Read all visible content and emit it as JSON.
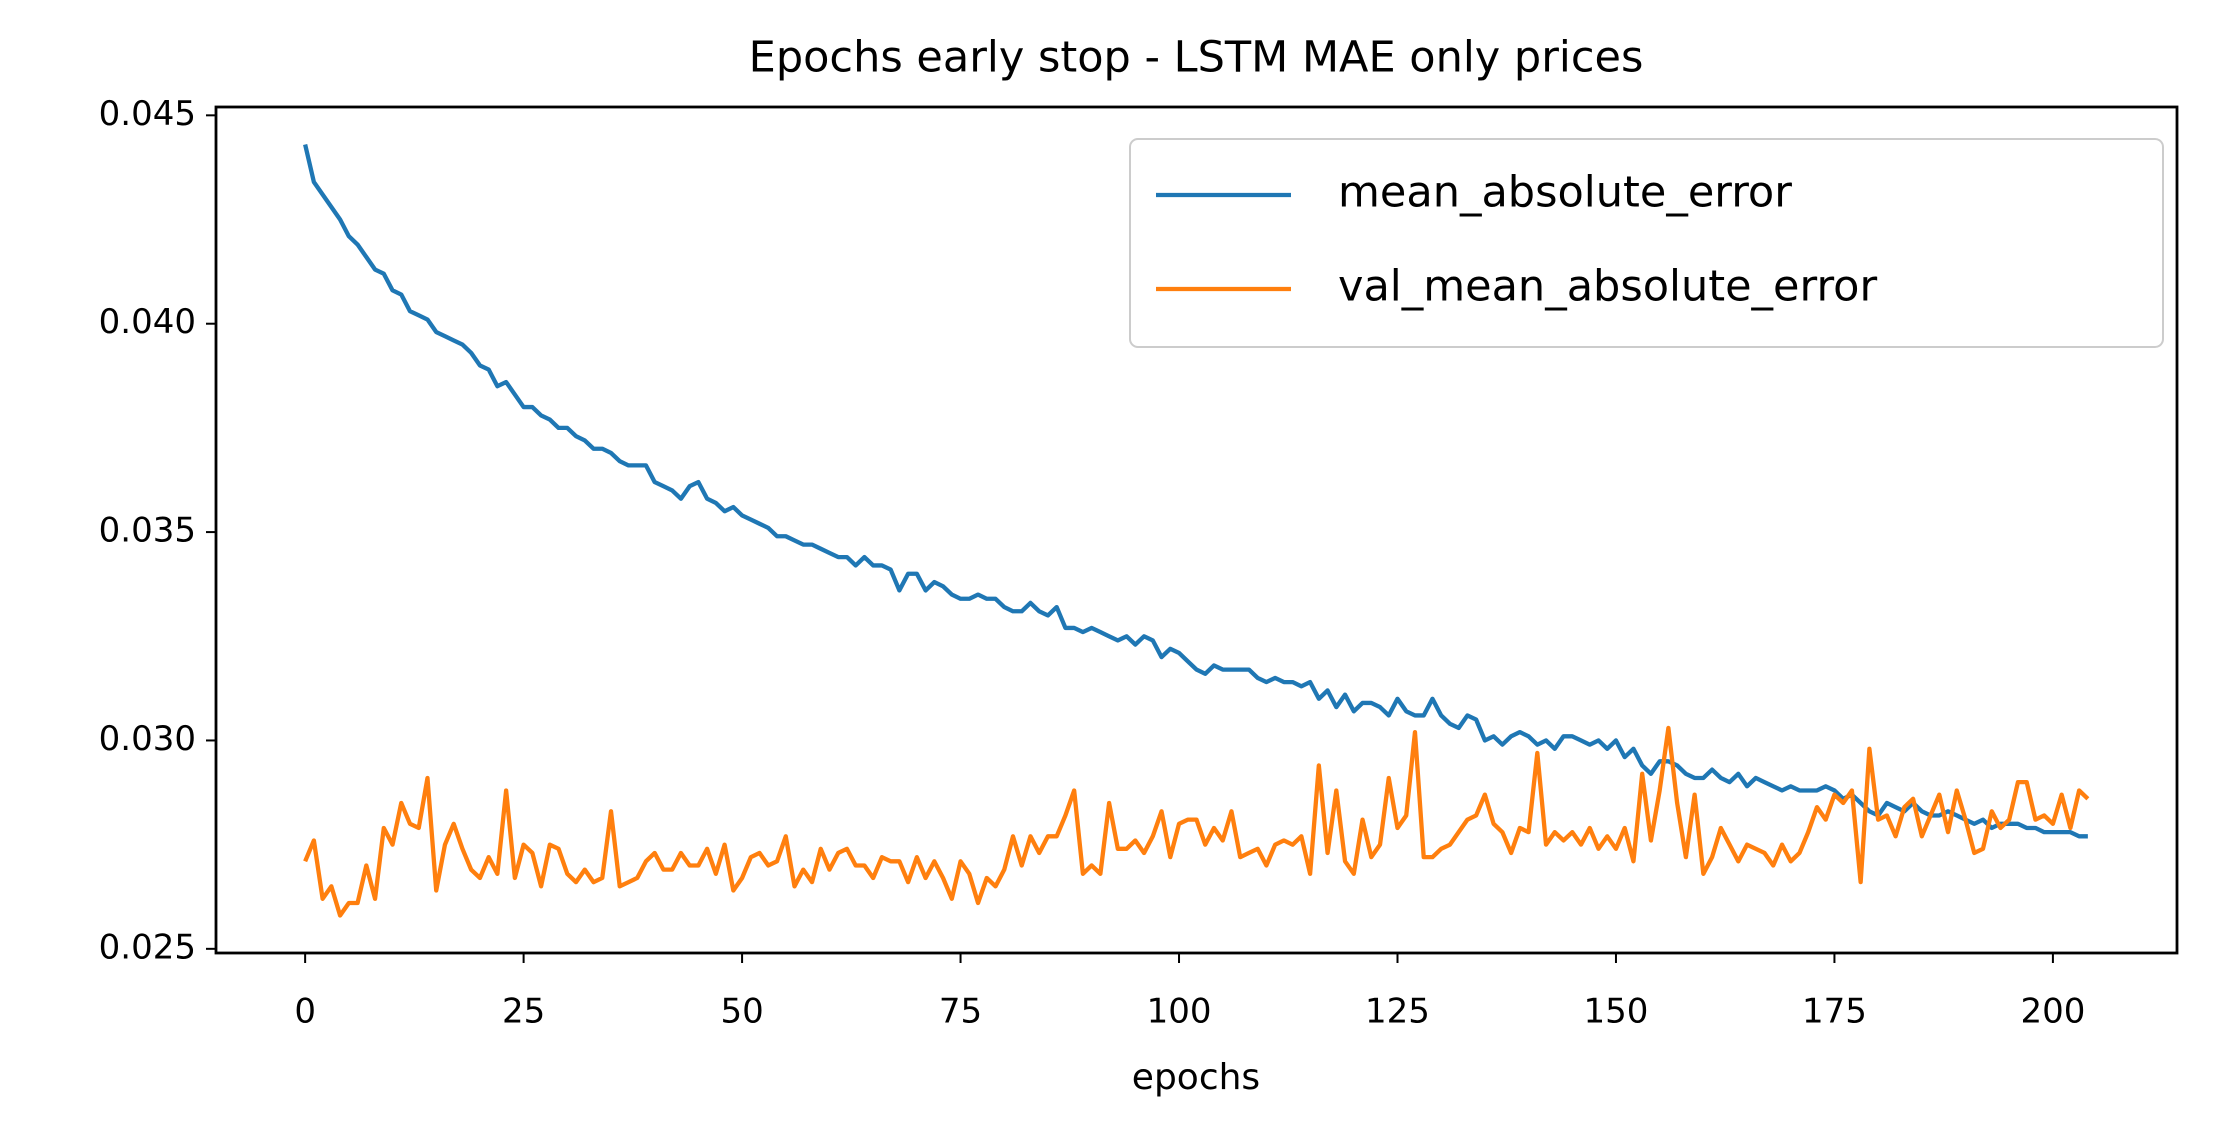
{
  "chart_data": {
    "type": "line",
    "title": "Epochs early stop - LSTM MAE only prices",
    "xlabel": "epochs",
    "x": [
      0,
      1,
      2,
      3,
      4,
      5,
      6,
      7,
      8,
      9,
      10,
      11,
      12,
      13,
      14,
      15,
      16,
      17,
      18,
      19,
      20,
      21,
      22,
      23,
      24,
      25,
      26,
      27,
      28,
      29,
      30,
      31,
      32,
      33,
      34,
      35,
      36,
      37,
      38,
      39,
      40,
      41,
      42,
      43,
      44,
      45,
      46,
      47,
      48,
      49,
      50,
      51,
      52,
      53,
      54,
      55,
      56,
      57,
      58,
      59,
      60,
      61,
      62,
      63,
      64,
      65,
      66,
      67,
      68,
      69,
      70,
      71,
      72,
      73,
      74,
      75,
      76,
      77,
      78,
      79,
      80,
      81,
      82,
      83,
      84,
      85,
      86,
      87,
      88,
      89,
      90,
      91,
      92,
      93,
      94,
      95,
      96,
      97,
      98,
      99,
      100,
      101,
      102,
      103,
      104,
      105,
      106,
      107,
      108,
      109,
      110,
      111,
      112,
      113,
      114,
      115,
      116,
      117,
      118,
      119,
      120,
      121,
      122,
      123,
      124,
      125,
      126,
      127,
      128,
      129,
      130,
      131,
      132,
      133,
      134,
      135,
      136,
      137,
      138,
      139,
      140,
      141,
      142,
      143,
      144,
      145,
      146,
      147,
      148,
      149,
      150,
      151,
      152,
      153,
      154,
      155,
      156,
      157,
      158,
      159,
      160,
      161,
      162,
      163,
      164,
      165,
      166,
      167,
      168,
      169,
      170,
      171,
      172,
      173,
      174,
      175,
      176,
      177,
      178,
      179,
      180,
      181,
      182,
      183,
      184,
      185,
      186,
      187,
      188,
      189,
      190,
      191,
      192,
      193,
      194,
      195,
      196,
      197,
      198,
      199,
      200,
      201,
      202,
      203,
      204
    ],
    "series": [
      {
        "name": "mean_absolute_error",
        "color": "#1f77b4",
        "values": [
          0.0443,
          0.0434,
          0.0431,
          0.0428,
          0.0425,
          0.0421,
          0.0419,
          0.0416,
          0.0413,
          0.0412,
          0.0408,
          0.0407,
          0.0403,
          0.0402,
          0.0401,
          0.0398,
          0.0397,
          0.0396,
          0.0395,
          0.0393,
          0.039,
          0.0389,
          0.0385,
          0.0386,
          0.0383,
          0.038,
          0.038,
          0.0378,
          0.0377,
          0.0375,
          0.0375,
          0.0373,
          0.0372,
          0.037,
          0.037,
          0.0369,
          0.0367,
          0.0366,
          0.0366,
          0.0366,
          0.0362,
          0.0361,
          0.036,
          0.0358,
          0.0361,
          0.0362,
          0.0358,
          0.0357,
          0.0355,
          0.0356,
          0.0354,
          0.0353,
          0.0352,
          0.0351,
          0.0349,
          0.0349,
          0.0348,
          0.0347,
          0.0347,
          0.0346,
          0.0345,
          0.0344,
          0.0344,
          0.0342,
          0.0344,
          0.0342,
          0.0342,
          0.0341,
          0.0336,
          0.034,
          0.034,
          0.0336,
          0.0338,
          0.0337,
          0.0335,
          0.0334,
          0.0334,
          0.0335,
          0.0334,
          0.0334,
          0.0332,
          0.0331,
          0.0331,
          0.0333,
          0.0331,
          0.033,
          0.0332,
          0.0327,
          0.0327,
          0.0326,
          0.0327,
          0.0326,
          0.0325,
          0.0324,
          0.0325,
          0.0323,
          0.0325,
          0.0324,
          0.032,
          0.0322,
          0.0321,
          0.0319,
          0.0317,
          0.0316,
          0.0318,
          0.0317,
          0.0317,
          0.0317,
          0.0317,
          0.0315,
          0.0314,
          0.0315,
          0.0314,
          0.0314,
          0.0313,
          0.0314,
          0.031,
          0.0312,
          0.0308,
          0.0311,
          0.0307,
          0.0309,
          0.0309,
          0.0308,
          0.0306,
          0.031,
          0.0307,
          0.0306,
          0.0306,
          0.031,
          0.0306,
          0.0304,
          0.0303,
          0.0306,
          0.0305,
          0.03,
          0.0301,
          0.0299,
          0.0301,
          0.0302,
          0.0301,
          0.0299,
          0.03,
          0.0298,
          0.0301,
          0.0301,
          0.03,
          0.0299,
          0.03,
          0.0298,
          0.03,
          0.0296,
          0.0298,
          0.0294,
          0.0292,
          0.0295,
          0.0295,
          0.0294,
          0.0292,
          0.0291,
          0.0291,
          0.0293,
          0.0291,
          0.029,
          0.0292,
          0.0289,
          0.0291,
          0.029,
          0.0289,
          0.0288,
          0.0289,
          0.0288,
          0.0288,
          0.0288,
          0.0289,
          0.0288,
          0.0286,
          0.0287,
          0.0285,
          0.0283,
          0.0282,
          0.0285,
          0.0284,
          0.0283,
          0.0285,
          0.0283,
          0.0282,
          0.0282,
          0.0283,
          0.0282,
          0.0281,
          0.028,
          0.0281,
          0.0279,
          0.028,
          0.028,
          0.028,
          0.0279,
          0.0279,
          0.0278,
          0.0278,
          0.0278,
          0.0278,
          0.0277,
          0.0277
        ]
      },
      {
        "name": "val_mean_absolute_error",
        "color": "#ff7f0e",
        "values": [
          0.0271,
          0.0276,
          0.0262,
          0.0265,
          0.0258,
          0.0261,
          0.0261,
          0.027,
          0.0262,
          0.0279,
          0.0275,
          0.0285,
          0.028,
          0.0279,
          0.0291,
          0.0264,
          0.0275,
          0.028,
          0.0274,
          0.0269,
          0.0267,
          0.0272,
          0.0268,
          0.0288,
          0.0267,
          0.0275,
          0.0273,
          0.0265,
          0.0275,
          0.0274,
          0.0268,
          0.0266,
          0.0269,
          0.0266,
          0.0267,
          0.0283,
          0.0265,
          0.0266,
          0.0267,
          0.0271,
          0.0273,
          0.0269,
          0.0269,
          0.0273,
          0.027,
          0.027,
          0.0274,
          0.0268,
          0.0275,
          0.0264,
          0.0267,
          0.0272,
          0.0273,
          0.027,
          0.0271,
          0.0277,
          0.0265,
          0.0269,
          0.0266,
          0.0274,
          0.0269,
          0.0273,
          0.0274,
          0.027,
          0.027,
          0.0267,
          0.0272,
          0.0271,
          0.0271,
          0.0266,
          0.0272,
          0.0267,
          0.0271,
          0.0267,
          0.0262,
          0.0271,
          0.0268,
          0.0261,
          0.0267,
          0.0265,
          0.0269,
          0.0277,
          0.027,
          0.0277,
          0.0273,
          0.0277,
          0.0277,
          0.0282,
          0.0288,
          0.0268,
          0.027,
          0.0268,
          0.0285,
          0.0274,
          0.0274,
          0.0276,
          0.0273,
          0.0277,
          0.0283,
          0.0272,
          0.028,
          0.0281,
          0.0281,
          0.0275,
          0.0279,
          0.0276,
          0.0283,
          0.0272,
          0.0273,
          0.0274,
          0.027,
          0.0275,
          0.0276,
          0.0275,
          0.0277,
          0.0268,
          0.0294,
          0.0273,
          0.0288,
          0.0271,
          0.0268,
          0.0281,
          0.0272,
          0.0275,
          0.0291,
          0.0279,
          0.0282,
          0.0302,
          0.0272,
          0.0272,
          0.0274,
          0.0275,
          0.0278,
          0.0281,
          0.0282,
          0.0287,
          0.028,
          0.0278,
          0.0273,
          0.0279,
          0.0278,
          0.0297,
          0.0275,
          0.0278,
          0.0276,
          0.0278,
          0.0275,
          0.0279,
          0.0274,
          0.0277,
          0.0274,
          0.0279,
          0.0271,
          0.0292,
          0.0276,
          0.0288,
          0.0303,
          0.0285,
          0.0272,
          0.0287,
          0.0268,
          0.0272,
          0.0279,
          0.0275,
          0.0271,
          0.0275,
          0.0274,
          0.0273,
          0.027,
          0.0275,
          0.0271,
          0.0273,
          0.0278,
          0.0284,
          0.0281,
          0.0287,
          0.0285,
          0.0288,
          0.0266,
          0.0298,
          0.0281,
          0.0282,
          0.0277,
          0.0284,
          0.0286,
          0.0277,
          0.0282,
          0.0287,
          0.0278,
          0.0288,
          0.0281,
          0.0273,
          0.0274,
          0.0283,
          0.0279,
          0.0281,
          0.029,
          0.029,
          0.0281,
          0.0282,
          0.028,
          0.0287,
          0.0279,
          0.0288,
          0.0286
        ]
      }
    ],
    "xlim": [
      -10.2,
      214.2
    ],
    "xticks": [
      0,
      25,
      50,
      75,
      100,
      125,
      150,
      175,
      200
    ],
    "ylim": [
      0.0249,
      0.0452
    ],
    "yticks": [
      0.025,
      {
        "value": 0.03,
        "label": "0.030"
      },
      0.035,
      {
        "value": 0.04,
        "label": "0.040"
      },
      0.045
    ],
    "grid": false,
    "legend": "upper right"
  }
}
